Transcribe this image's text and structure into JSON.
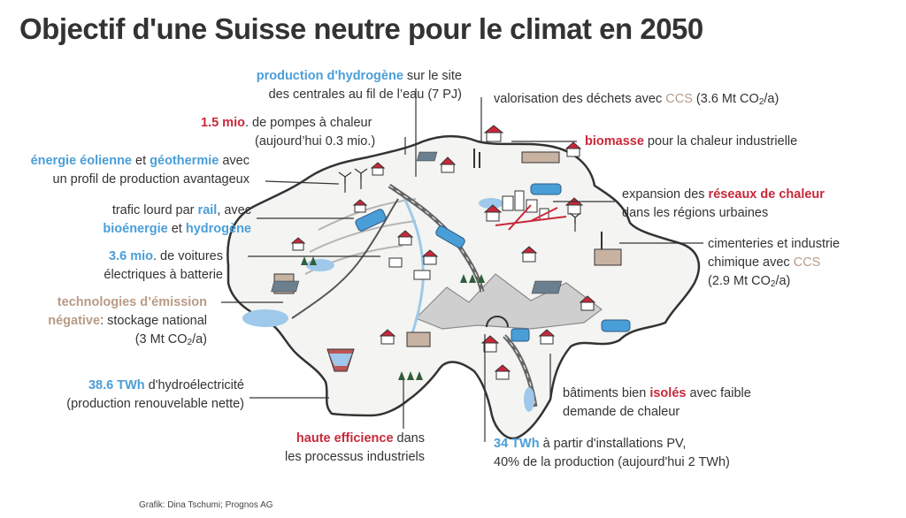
{
  "title": "Objectif d'une Suisse neutre pour le climat en 2050",
  "credit": "Grafik: Dina Tschumi; Prognos AG",
  "colors": {
    "blue": "#4a9ed8",
    "red": "#c8283a",
    "tan": "#b89b86",
    "text": "#333333"
  },
  "labels": {
    "hydrogen": {
      "hl": "production d'hydrogène",
      "t1": " sur le site",
      "l2": "des centrales au fil de l’eau (7 PJ)"
    },
    "heatpumps": {
      "hl": "1.5 mio",
      "t1": ". de pompes à chaleur",
      "l2": "(aujourd’hui 0.3 mio.)"
    },
    "wind": {
      "hl1": "énergie éolienne",
      "t1": " et ",
      "hl2": "géothermie",
      "t2": " avec",
      "l2": "un profil de production avantageux"
    },
    "rail": {
      "l1a": "trafic lourd par ",
      "hl1": "rail",
      "l1b": ", avec",
      "hl2": "bioénergie",
      "t2": " et ",
      "hl3": "hydrogène"
    },
    "ev": {
      "hl": "3.6 mio",
      "t1": ". de voitures",
      "l2": "électriques à batterie"
    },
    "negative": {
      "hl1": "technologies d’émission",
      "hl2": "négative",
      "t2": ": stockage national",
      "l3a": "(3 Mt CO",
      "l3sub": "2",
      "l3b": "/a)"
    },
    "hydro": {
      "hl": "38.6 TWh",
      "t1": " d'hydroélectricité",
      "l2": "(production renouvelable nette)"
    },
    "efficiency": {
      "hl": "haute efficience",
      "t1": " dans",
      "l2": "les processus industriels"
    },
    "waste": {
      "t1": "valorisation des déchets avec ",
      "hl": "CCS",
      "t2": " (3.6 Mt CO",
      "sub": "2",
      "t3": "/a)"
    },
    "biomass": {
      "hl": "biomasse",
      "t1": " pour la chaleur industrielle"
    },
    "heatnet": {
      "t1": "expansion des ",
      "hl": "réseaux de chaleur",
      "l2": "dans les régions urbaines"
    },
    "cement": {
      "l1": "cimenteries et industrie",
      "l2a": "chimique avec ",
      "hl": "CCS",
      "l3a": "(2.9 Mt CO",
      "l3sub": "2",
      "l3b": "/a)"
    },
    "insulated": {
      "t1": "bâtiments bien ",
      "hl": "isolés",
      "t2": " avec faible",
      "l2": "demande de chaleur"
    },
    "pv": {
      "hl": "34 TWh",
      "t1": " à partir d'installations PV,",
      "l2": "40% de la production (aujourd'hui 2 TWh)"
    }
  }
}
